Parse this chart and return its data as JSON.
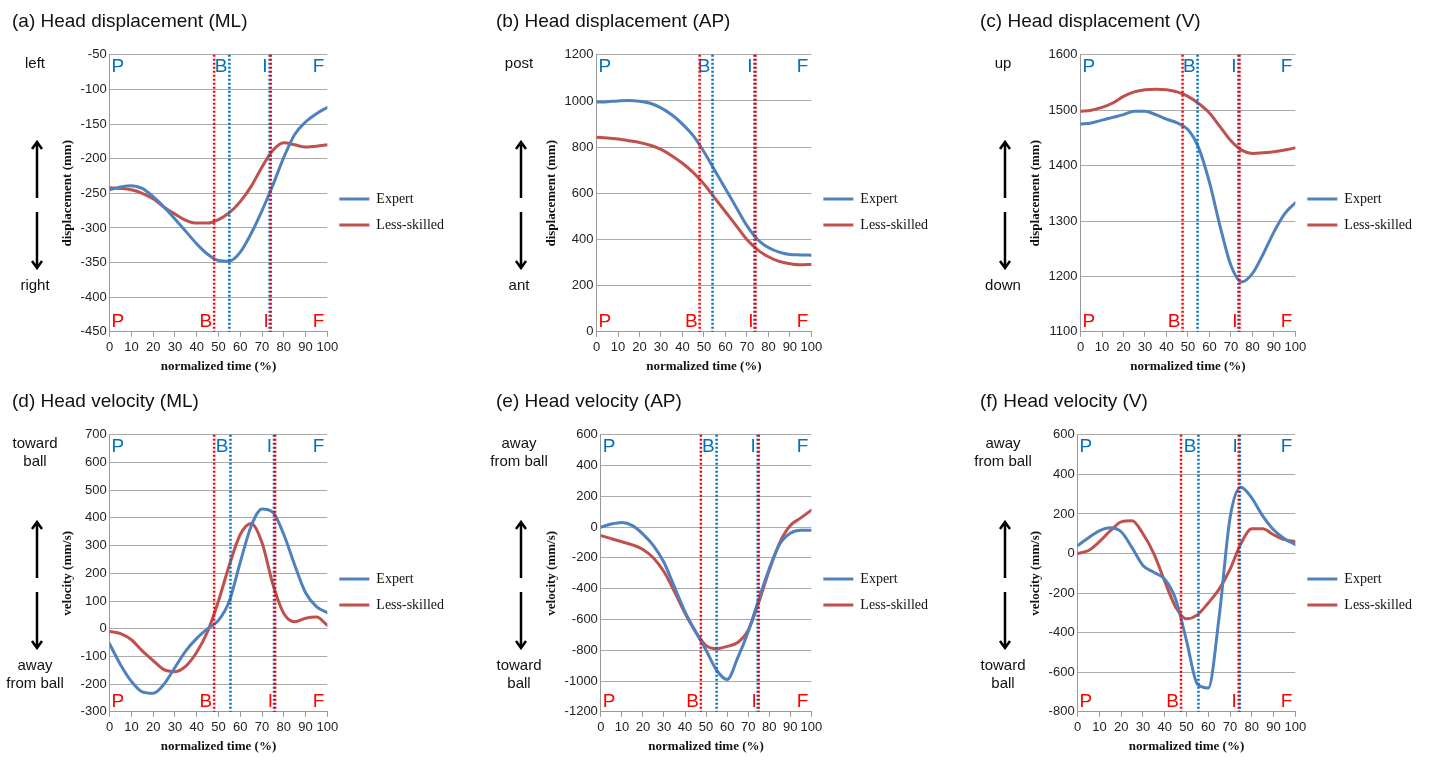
{
  "chart_data": [
    {
      "type": "line",
      "title": "(a) Head displacement (ML)",
      "xlabel": "normalized time (%)",
      "ylabel": "displacement (mm)",
      "x": [
        0,
        5,
        10,
        15,
        20,
        25,
        30,
        35,
        40,
        45,
        50,
        55,
        60,
        65,
        70,
        75,
        80,
        85,
        90,
        95,
        100
      ],
      "xlim": [
        0,
        100
      ],
      "xticks": [
        0,
        10,
        20,
        30,
        40,
        50,
        60,
        70,
        80,
        90,
        100
      ],
      "ylim": [
        -450,
        -50
      ],
      "yticks": [
        -450,
        -400,
        -350,
        -300,
        -250,
        -200,
        -150,
        -100,
        -50
      ],
      "grid": "y",
      "legend": "right",
      "series": [
        {
          "name": "Expert",
          "color": "#4f81bd",
          "values": [
            -245,
            -241,
            -239,
            -243,
            -255,
            -270,
            -287,
            -305,
            -323,
            -338,
            -347,
            -348,
            -335,
            -308,
            -275,
            -238,
            -198,
            -165,
            -147,
            -135,
            -126
          ]
        },
        {
          "name": "Less-skilled",
          "color": "#c0504d",
          "values": [
            -242,
            -243,
            -245,
            -250,
            -258,
            -270,
            -280,
            -289,
            -293,
            -293,
            -288,
            -278,
            -262,
            -240,
            -212,
            -188,
            -177,
            -180,
            -183,
            -182,
            -180
          ]
        }
      ],
      "ref_lines": [
        {
          "axis": "x",
          "value": 55,
          "label": "B",
          "color": "#0070c0",
          "line_style": "dotted"
        },
        {
          "axis": "x",
          "value": 73.5,
          "label": "I",
          "color": "#0070c0",
          "line_style": "dotted"
        },
        {
          "axis": "x",
          "value": 48,
          "label": "B",
          "color": "#ff0000",
          "line_style": "dotted"
        },
        {
          "axis": "x",
          "value": 74,
          "label": "I",
          "color": "#ff0000",
          "line_style": "dotted"
        }
      ],
      "annotations": [
        "left",
        "right",
        "P",
        "F",
        "P",
        "F"
      ]
    },
    {
      "type": "line",
      "title": "(b) Head displacement (AP)",
      "xlabel": "normalized time (%)",
      "ylabel": "displacement (mm)",
      "x": [
        0,
        5,
        10,
        15,
        20,
        25,
        30,
        35,
        40,
        45,
        50,
        55,
        60,
        65,
        70,
        75,
        80,
        85,
        90,
        95,
        100
      ],
      "xlim": [
        0,
        100
      ],
      "xticks": [
        0,
        10,
        20,
        30,
        40,
        50,
        60,
        70,
        80,
        90,
        100
      ],
      "ylim": [
        0,
        1200
      ],
      "yticks": [
        0,
        200,
        400,
        600,
        800,
        1000,
        1200
      ],
      "grid": "y",
      "legend": "right",
      "series": [
        {
          "name": "Expert",
          "color": "#4f81bd",
          "values": [
            995,
            997,
            1000,
            1002,
            999,
            990,
            970,
            940,
            900,
            850,
            780,
            700,
            620,
            540,
            460,
            400,
            365,
            345,
            335,
            333,
            332
          ]
        },
        {
          "name": "Less-skilled",
          "color": "#c0504d",
          "values": [
            843,
            840,
            835,
            828,
            820,
            808,
            790,
            763,
            730,
            690,
            640,
            580,
            520,
            460,
            400,
            355,
            325,
            305,
            295,
            290,
            292
          ]
        }
      ],
      "ref_lines": [
        {
          "axis": "x",
          "value": 54,
          "label": "B",
          "color": "#0070c0",
          "line_style": "dotted"
        },
        {
          "axis": "x",
          "value": 73.5,
          "label": "I",
          "color": "#0070c0",
          "line_style": "dotted"
        },
        {
          "axis": "x",
          "value": 48,
          "label": "B",
          "color": "#ff0000",
          "line_style": "dotted"
        },
        {
          "axis": "x",
          "value": 74,
          "label": "I",
          "color": "#ff0000",
          "line_style": "dotted"
        }
      ],
      "annotations": [
        "post",
        "ant",
        "P",
        "F",
        "P",
        "F"
      ]
    },
    {
      "type": "line",
      "title": "(c) Head displacement (V)",
      "xlabel": "normalized time (%)",
      "ylabel": "displacement (mm)",
      "x": [
        0,
        5,
        10,
        15,
        20,
        25,
        30,
        35,
        40,
        45,
        50,
        55,
        60,
        65,
        70,
        75,
        80,
        85,
        90,
        95,
        100
      ],
      "xlim": [
        0,
        100
      ],
      "xticks": [
        0,
        10,
        20,
        30,
        40,
        50,
        60,
        70,
        80,
        90,
        100
      ],
      "ylim": [
        1100,
        1600
      ],
      "yticks": [
        1100,
        1200,
        1300,
        1400,
        1500,
        1600
      ],
      "grid": "y",
      "legend": "right",
      "series": [
        {
          "name": "Expert",
          "color": "#4f81bd",
          "values": [
            1475,
            1477,
            1482,
            1487,
            1492,
            1498,
            1498,
            1492,
            1484,
            1477,
            1465,
            1432,
            1370,
            1290,
            1220,
            1190,
            1205,
            1240,
            1280,
            1313,
            1333
          ]
        },
        {
          "name": "Less-skilled",
          "color": "#c0504d",
          "values": [
            1498,
            1500,
            1505,
            1513,
            1525,
            1533,
            1537,
            1538,
            1537,
            1533,
            1525,
            1512,
            1495,
            1470,
            1445,
            1428,
            1422,
            1423,
            1425,
            1428,
            1432
          ]
        }
      ],
      "ref_lines": [
        {
          "axis": "x",
          "value": 54.5,
          "label": "B",
          "color": "#0070c0",
          "line_style": "dotted"
        },
        {
          "axis": "x",
          "value": 73.5,
          "label": "I",
          "color": "#0070c0",
          "line_style": "dotted"
        },
        {
          "axis": "x",
          "value": 47.5,
          "label": "B",
          "color": "#ff0000",
          "line_style": "dotted"
        },
        {
          "axis": "x",
          "value": 74,
          "label": "I",
          "color": "#ff0000",
          "line_style": "dotted"
        }
      ],
      "annotations": [
        "up",
        "down",
        "P",
        "F",
        "P",
        "F"
      ]
    },
    {
      "type": "line",
      "title": "(d) Head velocity (ML)",
      "xlabel": "normalized time (%)",
      "ylabel": "velocity (mm/s)",
      "x": [
        0,
        5,
        10,
        15,
        20,
        25,
        30,
        35,
        40,
        45,
        50,
        55,
        60,
        65,
        70,
        75,
        80,
        85,
        90,
        95,
        100
      ],
      "xlim": [
        0,
        100
      ],
      "xticks": [
        0,
        10,
        20,
        30,
        40,
        50,
        60,
        70,
        80,
        90,
        100
      ],
      "ylim": [
        -300,
        700
      ],
      "yticks": [
        -300,
        -200,
        -100,
        0,
        100,
        200,
        300,
        400,
        500,
        600,
        700
      ],
      "grid": "y",
      "legend": "right",
      "series": [
        {
          "name": "Expert",
          "color": "#4f81bd",
          "values": [
            -55,
            -130,
            -190,
            -228,
            -233,
            -200,
            -140,
            -80,
            -35,
            0,
            30,
            100,
            240,
            370,
            432,
            420,
            340,
            230,
            130,
            80,
            58
          ]
        },
        {
          "name": "Less-skilled",
          "color": "#c0504d",
          "values": [
            -10,
            -18,
            -40,
            -80,
            -115,
            -148,
            -155,
            -135,
            -85,
            -10,
            100,
            230,
            340,
            380,
            310,
            160,
            55,
            25,
            38,
            42,
            12
          ]
        }
      ],
      "ref_lines": [
        {
          "axis": "x",
          "value": 55.5,
          "label": "B",
          "color": "#0070c0",
          "line_style": "dotted"
        },
        {
          "axis": "x",
          "value": 75.5,
          "label": "I",
          "color": "#0070c0",
          "line_style": "dotted"
        },
        {
          "axis": "x",
          "value": 48,
          "label": "B",
          "color": "#ff0000",
          "line_style": "dotted"
        },
        {
          "axis": "x",
          "value": 76,
          "label": "I",
          "color": "#ff0000",
          "line_style": "dotted"
        }
      ],
      "annotations": [
        "toward ball",
        "away from ball",
        "P",
        "F",
        "P",
        "F"
      ]
    },
    {
      "type": "line",
      "title": "(e) Head velocity (AP)",
      "xlabel": "normalized time (%)",
      "ylabel": "velocity (mm/s)",
      "x": [
        0,
        5,
        10,
        15,
        20,
        25,
        30,
        35,
        40,
        45,
        50,
        55,
        60,
        65,
        70,
        75,
        80,
        85,
        90,
        95,
        100
      ],
      "xlim": [
        0,
        100
      ],
      "xticks": [
        0,
        10,
        20,
        30,
        40,
        50,
        60,
        70,
        80,
        90,
        100
      ],
      "ylim": [
        -1200,
        600
      ],
      "yticks": [
        -1200,
        -1000,
        -800,
        -600,
        -400,
        -200,
        0,
        200,
        400,
        600
      ],
      "grid": "y",
      "legend": "right",
      "series": [
        {
          "name": "Expert",
          "color": "#4f81bd",
          "values": [
            0,
            20,
            30,
            10,
            -45,
            -120,
            -230,
            -390,
            -550,
            -680,
            -800,
            -930,
            -990,
            -850,
            -680,
            -470,
            -270,
            -110,
            -40,
            -20,
            -20
          ]
        },
        {
          "name": "Less-skilled",
          "color": "#c0504d",
          "values": [
            -55,
            -75,
            -95,
            -115,
            -145,
            -200,
            -290,
            -420,
            -560,
            -680,
            -770,
            -790,
            -775,
            -750,
            -670,
            -490,
            -280,
            -100,
            10,
            60,
            110
          ]
        }
      ],
      "ref_lines": [
        {
          "axis": "x",
          "value": 55,
          "label": "B",
          "color": "#0070c0",
          "line_style": "dotted"
        },
        {
          "axis": "x",
          "value": 74.5,
          "label": "I",
          "color": "#0070c0",
          "line_style": "dotted"
        },
        {
          "axis": "x",
          "value": 47.5,
          "label": "B",
          "color": "#ff0000",
          "line_style": "dotted"
        },
        {
          "axis": "x",
          "value": 75,
          "label": "I",
          "color": "#ff0000",
          "line_style": "dotted"
        }
      ],
      "annotations": [
        "away from ball",
        "toward ball",
        "P",
        "F",
        "P",
        "F"
      ]
    },
    {
      "type": "line",
      "title": "(f) Head velocity (V)",
      "xlabel": "normalized time (%)",
      "ylabel": "velocity (mm/s)",
      "x": [
        0,
        5,
        10,
        15,
        20,
        25,
        30,
        35,
        40,
        45,
        50,
        55,
        60,
        65,
        70,
        75,
        80,
        85,
        90,
        95,
        100
      ],
      "xlim": [
        0,
        100
      ],
      "xticks": [
        0,
        10,
        20,
        30,
        40,
        50,
        60,
        70,
        80,
        90,
        100
      ],
      "ylim": [
        -800,
        600
      ],
      "yticks": [
        -800,
        -600,
        -400,
        -200,
        0,
        200,
        400,
        600
      ],
      "grid": "y",
      "legend": "right",
      "series": [
        {
          "name": "Expert",
          "color": "#4f81bd",
          "values": [
            40,
            80,
            115,
            130,
            110,
            30,
            -60,
            -95,
            -130,
            -230,
            -440,
            -660,
            -680,
            -320,
            180,
            335,
            280,
            190,
            120,
            75,
            45
          ]
        },
        {
          "name": "Less-skilled",
          "color": "#c0504d",
          "values": [
            0,
            15,
            60,
            115,
            160,
            165,
            100,
            0,
            -140,
            -270,
            -330,
            -310,
            -250,
            -180,
            -80,
            50,
            125,
            125,
            95,
            70,
            60
          ]
        }
      ],
      "ref_lines": [
        {
          "axis": "x",
          "value": 55.5,
          "label": "B",
          "color": "#0070c0",
          "line_style": "dotted"
        },
        {
          "axis": "x",
          "value": 74.5,
          "label": "I",
          "color": "#0070c0",
          "line_style": "dotted"
        },
        {
          "axis": "x",
          "value": 47.5,
          "label": "B",
          "color": "#ff0000",
          "line_style": "dotted"
        },
        {
          "axis": "x",
          "value": 74,
          "label": "I",
          "color": "#ff0000",
          "line_style": "dotted"
        }
      ],
      "annotations": [
        "away from ball",
        "toward ball",
        "P",
        "F",
        "P",
        "F"
      ]
    }
  ]
}
